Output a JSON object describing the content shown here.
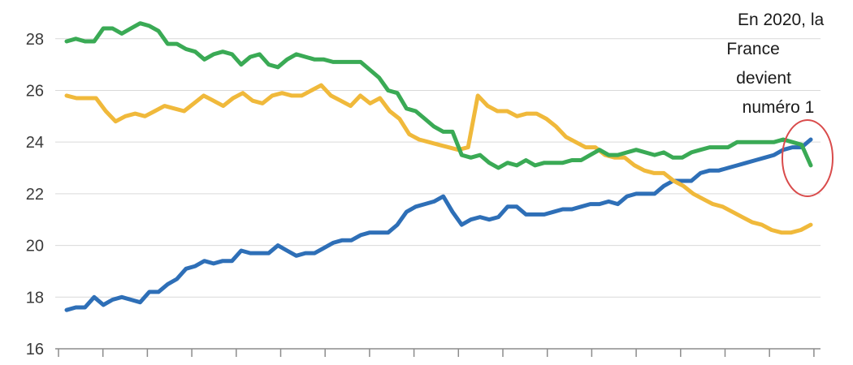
{
  "chart_data": {
    "type": "line",
    "ylim": [
      16,
      29.5
    ],
    "y_ticks": [
      "16",
      "18",
      "20",
      "22",
      "24",
      "26",
      "28"
    ],
    "grid": true,
    "series": [
      {
        "color": "#2e6fb7",
        "values": [
          17.5,
          17.6,
          17.6,
          18,
          17.7,
          17.9,
          18,
          17.9,
          17.8,
          18.2,
          18.2,
          18.5,
          18.7,
          19.1,
          19.2,
          19.4,
          19.3,
          19.4,
          19.4,
          19.8,
          19.7,
          19.7,
          19.7,
          20,
          19.8,
          19.6,
          19.7,
          19.7,
          19.9,
          20.1,
          20.2,
          20.2,
          20.4,
          20.5,
          20.5,
          20.5,
          20.8,
          21.3,
          21.5,
          21.6,
          21.7,
          21.9,
          21.3,
          20.8,
          21,
          21.1,
          21,
          21.1,
          21.5,
          21.5,
          21.2,
          21.2,
          21.2,
          21.3,
          21.4,
          21.4,
          21.5,
          21.6,
          21.6,
          21.7,
          21.6,
          21.9,
          22,
          22,
          22,
          22.3,
          22.5,
          22.5,
          22.5,
          22.8,
          22.9,
          22.9,
          23,
          23.1,
          23.2,
          23.3,
          23.4,
          23.5,
          23.7,
          23.8,
          23.8,
          24.1
        ]
      },
      {
        "color": "#f0b93b",
        "values": [
          25.8,
          25.7,
          25.7,
          25.7,
          25.2,
          24.8,
          25,
          25.1,
          25,
          25.2,
          25.4,
          25.3,
          25.2,
          25.5,
          25.8,
          25.6,
          25.4,
          25.7,
          25.9,
          25.6,
          25.5,
          25.8,
          25.9,
          25.8,
          25.8,
          26,
          26.2,
          25.8,
          25.6,
          25.4,
          25.8,
          25.5,
          25.7,
          25.2,
          24.9,
          24.3,
          24.1,
          24,
          23.9,
          23.8,
          23.7,
          23.8,
          25.8,
          25.4,
          25.2,
          25.2,
          25,
          25.1,
          25.1,
          24.9,
          24.6,
          24.2,
          24,
          23.8,
          23.8,
          23.5,
          23.4,
          23.4,
          23.1,
          22.9,
          22.8,
          22.8,
          22.5,
          22.3,
          22,
          21.8,
          21.6,
          21.5,
          21.3,
          21.1,
          20.9,
          20.8,
          20.6,
          20.5,
          20.5,
          20.6,
          20.8
        ]
      },
      {
        "color": "#3aaa55",
        "values": [
          27.9,
          28,
          27.9,
          27.9,
          28.4,
          28.4,
          28.2,
          28.4,
          28.6,
          28.5,
          28.3,
          27.8,
          27.8,
          27.6,
          27.5,
          27.2,
          27.4,
          27.5,
          27.4,
          27,
          27.3,
          27.4,
          27,
          26.9,
          27.2,
          27.4,
          27.3,
          27.2,
          27.2,
          27.1,
          27.1,
          27.1,
          27.1,
          26.8,
          26.5,
          26,
          25.9,
          25.3,
          25.2,
          24.9,
          24.6,
          24.4,
          24.4,
          23.5,
          23.4,
          23.5,
          23.2,
          23,
          23.2,
          23.1,
          23.3,
          23.1,
          23.2,
          23.2,
          23.2,
          23.3,
          23.3,
          23.5,
          23.7,
          23.5,
          23.5,
          23.6,
          23.7,
          23.6,
          23.5,
          23.6,
          23.4,
          23.4,
          23.6,
          23.7,
          23.8,
          23.8,
          23.8,
          24,
          24,
          24,
          24,
          24,
          24.1,
          24,
          23.9,
          23.1
        ]
      }
    ],
    "annotation": "En 2020, la France devient numéro 1",
    "annotation_lines": [
      "En 2020, la",
      "France",
      "devient",
      "numéro 1"
    ]
  }
}
